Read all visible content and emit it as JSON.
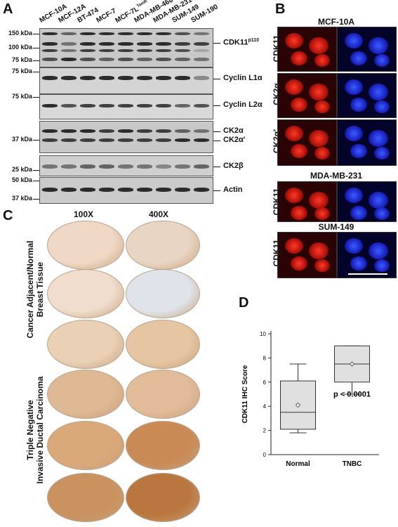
{
  "panels": {
    "a": "A",
    "b": "B",
    "c": "C",
    "d": "D"
  },
  "panelA": {
    "lanes": [
      "MCF-10A",
      "MCF-12A",
      "BT-474",
      "MCF-7",
      "MCF-7L",
      "MDA-MB-468",
      "MDA-MB-231",
      "SUM-149",
      "SUM-190"
    ],
    "lane5_sup": "TamR",
    "markers": [
      {
        "label": "150 kDa"
      },
      {
        "label": "100 kDa"
      },
      {
        "label": "75 kDa"
      },
      {
        "label": "75 kDa"
      },
      {
        "label": "75 kDa"
      },
      {
        "label": "37 kDa"
      },
      {
        "label": "25 kDa"
      },
      {
        "label": "50 kDa"
      },
      {
        "label": "37 kDa"
      }
    ],
    "bands": {
      "cdk11": "CDK11",
      "cdk11_sup": "p110",
      "cyclinL1": "Cyclin L1",
      "alpha": "α",
      "cyclinL2": "Cyclin L2",
      "ck2a": "CK2",
      "ck2ap": "CK2",
      "prime": "'",
      "ck2b": "CK2",
      "beta": "β",
      "actin": "Actin"
    }
  },
  "panelB": {
    "title1": "MCF-10A",
    "rows": [
      "CDK11",
      "CK2α",
      "CK2α'"
    ],
    "title2": "MDA-MB-231",
    "row4": "CDK11",
    "title3": "SUM-149",
    "row5": "CDK11"
  },
  "panelC": {
    "col1": "100X",
    "col2": "400X",
    "group1_l1": "Cancer Adjacent/Normal",
    "group1_l2": "Breast Tissue",
    "group2_l1": "Triple Negative",
    "group2_l2": "Invasive Ductal Carcinoma"
  },
  "chart_data": {
    "type": "box",
    "ylabel": "CDK11 IHC Score",
    "ylim": [
      0,
      10
    ],
    "yticks": [
      0,
      2,
      4,
      6,
      8,
      10
    ],
    "categories": [
      "Normal",
      "TNBC"
    ],
    "boxes": [
      {
        "name": "Normal",
        "whisker_low": 1.8,
        "q1": 2.1,
        "median": 3.5,
        "q3": 6.1,
        "whisker_high": 7.5,
        "mean": 4.1
      },
      {
        "name": "TNBC",
        "whisker_low": 5.0,
        "q1": 6.0,
        "median": 7.5,
        "q3": 9.0,
        "whisker_high": 9.0,
        "mean": 7.5
      }
    ],
    "annotation": "p < 0.0001"
  }
}
